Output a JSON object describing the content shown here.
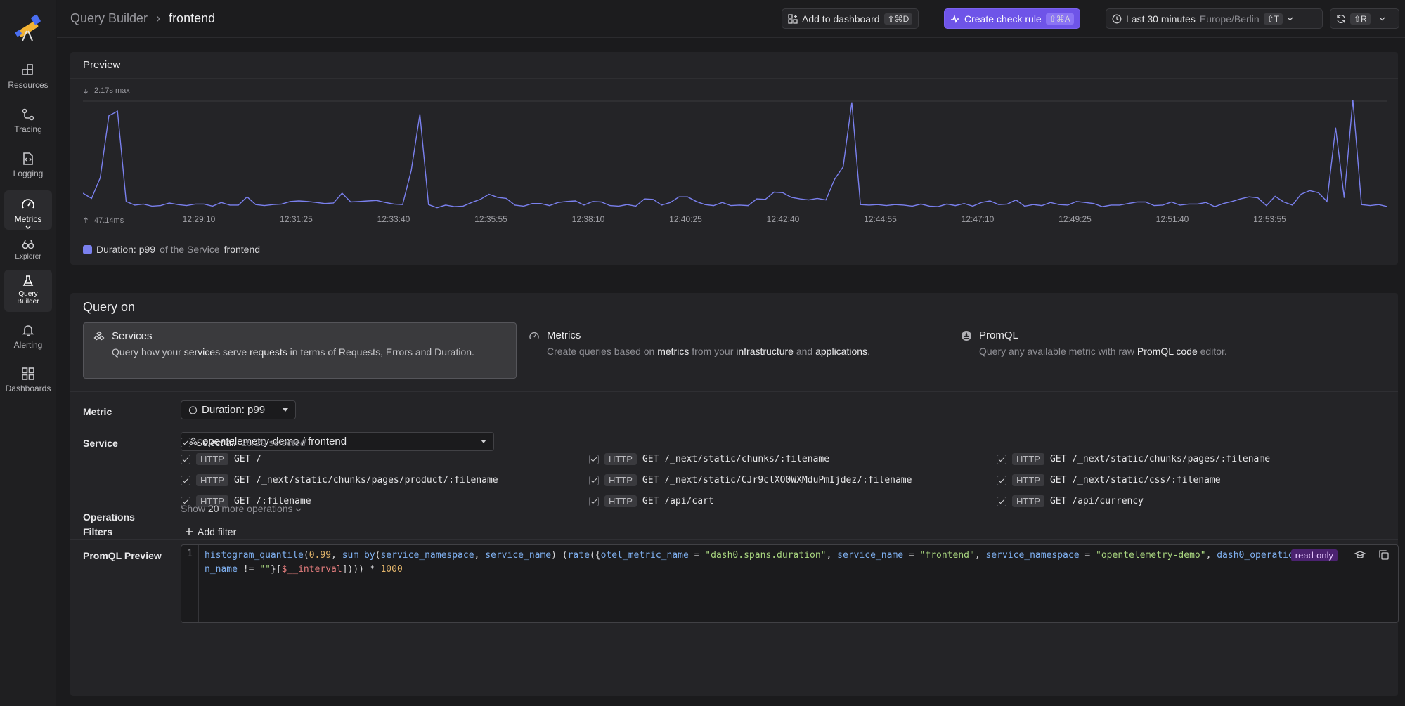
{
  "breadcrumb": {
    "parent": "Query Builder",
    "current": "frontend"
  },
  "topbar": {
    "add_dashboard": {
      "label": "Add to dashboard",
      "shortcut": "⇧⌘D"
    },
    "create_check": {
      "label": "Create check rule",
      "shortcut": "⇧⌘A"
    },
    "time_range": {
      "label": "Last 30 minutes",
      "timezone": "Europe/Berlin",
      "shortcut": "⇧T"
    },
    "refresh": {
      "shortcut": "⇧R"
    }
  },
  "sidebar": {
    "items": [
      {
        "label": "Resources",
        "icon": "resources-icon"
      },
      {
        "label": "Tracing",
        "icon": "tracing-icon"
      },
      {
        "label": "Logging",
        "icon": "logging-icon"
      },
      {
        "label": "Metrics",
        "icon": "metrics-icon"
      },
      {
        "label": "Explorer",
        "icon": "explorer-icon"
      },
      {
        "label": "Query Builder",
        "icon": "flask-icon"
      },
      {
        "label": "Alerting",
        "icon": "bell-icon"
      },
      {
        "label": "Dashboards",
        "icon": "dashboards-icon"
      }
    ]
  },
  "preview": {
    "title": "Preview",
    "legend": {
      "metric": "Duration: p99",
      "mid": " of the Service ",
      "service": "frontend"
    }
  },
  "chart_data": {
    "type": "line",
    "title": "",
    "max_label": "2.17s max",
    "min_label": "47.14ms",
    "x_ticks": [
      "12:29:10",
      "12:31:25",
      "12:33:40",
      "12:35:55",
      "12:38:10",
      "12:40:25",
      "12:42:40",
      "12:44:55",
      "12:47:10",
      "12:49:25",
      "12:51:40",
      "12:53:55"
    ],
    "ylim": [
      47.14,
      2170
    ],
    "unit": "ms",
    "series": [
      {
        "color": "#7a80ee",
        "values": [
          360,
          260,
          660,
          1860,
          1950,
          200,
          130,
          150,
          110,
          120,
          170,
          140,
          120,
          150,
          150,
          110,
          180,
          130,
          130,
          290,
          140,
          120,
          140,
          150,
          200,
          210,
          200,
          180,
          160,
          170,
          360,
          190,
          200,
          210,
          220,
          180,
          150,
          140,
          800,
          1890,
          140,
          80,
          130,
          100,
          110,
          180,
          240,
          340,
          280,
          260,
          130,
          110,
          160,
          160,
          120,
          180,
          200,
          210,
          130,
          200,
          190,
          120,
          110,
          140,
          110,
          250,
          240,
          130,
          180,
          290,
          290,
          200,
          140,
          120,
          180,
          120,
          130,
          120,
          250,
          240,
          380,
          370,
          280,
          250,
          230,
          260,
          230,
          630,
          870,
          2120,
          140,
          130,
          140,
          120,
          140,
          130,
          110,
          150,
          110,
          100,
          150,
          120,
          160,
          110,
          180,
          210,
          140,
          150,
          230,
          110,
          140,
          120,
          180,
          140,
          130,
          200,
          180,
          160,
          100,
          130,
          130,
          160,
          190,
          190,
          120,
          130,
          190,
          130,
          150,
          150,
          180,
          100,
          160,
          200,
          250,
          290,
          270,
          120,
          300,
          190,
          130,
          340,
          410,
          370,
          200,
          1630,
          270,
          2170,
          140,
          120,
          140,
          100
        ]
      }
    ]
  },
  "query": {
    "title": "Query on",
    "cards": [
      {
        "title": "Services",
        "d1": "Query how your ",
        "b1": "services",
        "d2": " serve ",
        "b2": "requests",
        "d3": " in terms of Requests, Errors and Duration."
      },
      {
        "title": "Metrics",
        "d1": "Create queries based on ",
        "b1": "metrics",
        "d2": " from your ",
        "b2": "infrastructure",
        "d3": " and ",
        "b3": "applications",
        "d4": "."
      },
      {
        "title": "PromQL",
        "d1": "Query any available metric with raw ",
        "b1": "PromQL code",
        "d2": " editor."
      }
    ]
  },
  "form": {
    "metric_label": "Metric",
    "metric_value": "Duration: p99",
    "service_label": "Service",
    "service_value": "opentelemetry-demo / frontend",
    "operations_label": "Operations",
    "select_all": "Select all",
    "selected_count": "29/29 selected",
    "operations": [
      {
        "badge": "HTTP",
        "path": "GET /"
      },
      {
        "badge": "HTTP",
        "path": "GET /_next/static/chunks/:filename"
      },
      {
        "badge": "HTTP",
        "path": "GET /_next/static/chunks/pages/:filename"
      },
      {
        "badge": "HTTP",
        "path": "GET /_next/static/chunks/pages/product/:filename"
      },
      {
        "badge": "HTTP",
        "path": "GET /_next/static/CJr9clXO0WXMduPmIjdez/:filename"
      },
      {
        "badge": "HTTP",
        "path": "GET /_next/static/css/:filename"
      },
      {
        "badge": "HTTP",
        "path": "GET /:filename"
      },
      {
        "badge": "HTTP",
        "path": "GET /api/cart"
      },
      {
        "badge": "HTTP",
        "path": "GET /api/currency"
      }
    ],
    "show_more": {
      "pre": "Show ",
      "count": "20",
      "post": " more operations"
    },
    "filters_label": "Filters",
    "add_filter": "Add filter",
    "promql_label": "PromQL Preview",
    "line_number": "1",
    "read_only": "read-only",
    "code": {
      "t1": "histogram_quantile",
      "t2": "(",
      "t3": "0.99",
      "t4": ", ",
      "t5": "sum",
      "t6": " ",
      "t7": "by",
      "t8": "(",
      "t9": "service_namespace",
      "t10": ", ",
      "t11": "service_name",
      "t12": ") (",
      "t13": "rate",
      "t14": "({",
      "t15": "otel_metric_name",
      "t16": " = ",
      "t17": "\"dash0.spans.duration\"",
      "t18": ", ",
      "t19": "service_name",
      "t20": " = ",
      "t21": "\"frontend\"",
      "t22": ", ",
      "t23": "service_namespace",
      "t24": " = ",
      "t25": "\"opentelemetry-demo\"",
      "t26": ", ",
      "t27": "dash0_operation_name",
      "t28": " != ",
      "t29": "\"\"",
      "t30": "}[",
      "t31": "$__interval",
      "t32": "]))) * ",
      "t33": "1000"
    }
  }
}
